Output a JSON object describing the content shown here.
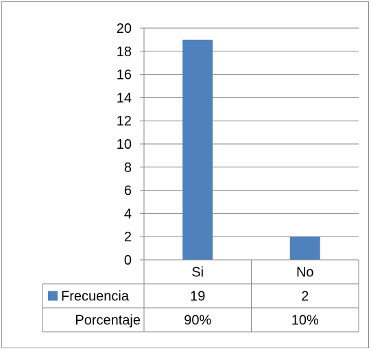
{
  "chart_data": {
    "type": "bar",
    "categories": [
      "Si",
      "No"
    ],
    "series": [
      {
        "name": "Frecuencia",
        "values": [
          19,
          2
        ]
      }
    ],
    "ylim": [
      0,
      20
    ],
    "yticks": [
      0,
      2,
      4,
      6,
      8,
      10,
      12,
      14,
      16,
      18,
      20
    ],
    "grid": true,
    "legend": "data-table",
    "data_table": {
      "rows": [
        {
          "label": "Frecuencia",
          "has_key": true,
          "values": [
            "19",
            "2"
          ]
        },
        {
          "label": "Porcentaje",
          "has_key": false,
          "values": [
            "90%",
            "10%"
          ]
        }
      ]
    },
    "colors": {
      "bar": "#4f81bd",
      "grid": "#868686",
      "axis": "#868686"
    }
  }
}
